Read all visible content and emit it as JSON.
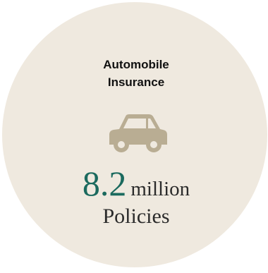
{
  "card": {
    "title_line1": "Automobile",
    "title_line2": "Insurance",
    "icon": "car-icon",
    "value": "8.2",
    "unit": "million",
    "subtitle": "Policies"
  },
  "colors": {
    "circle_bg": "#efe9df",
    "icon": "#b9ad93",
    "value": "#1b6a5e",
    "text": "#2b2b2b"
  }
}
